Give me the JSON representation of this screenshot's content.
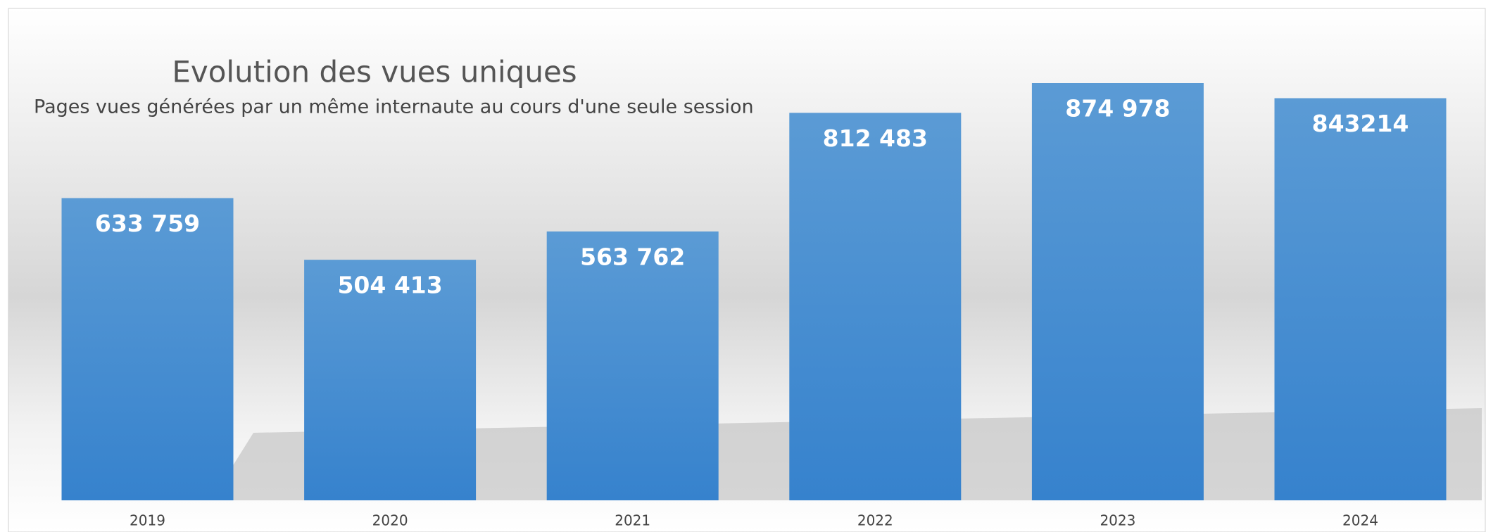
{
  "chart_data": {
    "type": "bar",
    "title": "Evolution des vues uniques",
    "subtitle": "Pages vues générées par un même internaute au cours d'une seule session",
    "categories": [
      "2019",
      "2020",
      "2021",
      "2022",
      "2023",
      "2024"
    ],
    "values": [
      633759,
      504413,
      563762,
      812483,
      874978,
      843214
    ],
    "value_labels": [
      "633 759",
      "504 413",
      "563 762",
      "812 483",
      "874 978",
      "843214"
    ],
    "color": "#4a90d6"
  }
}
